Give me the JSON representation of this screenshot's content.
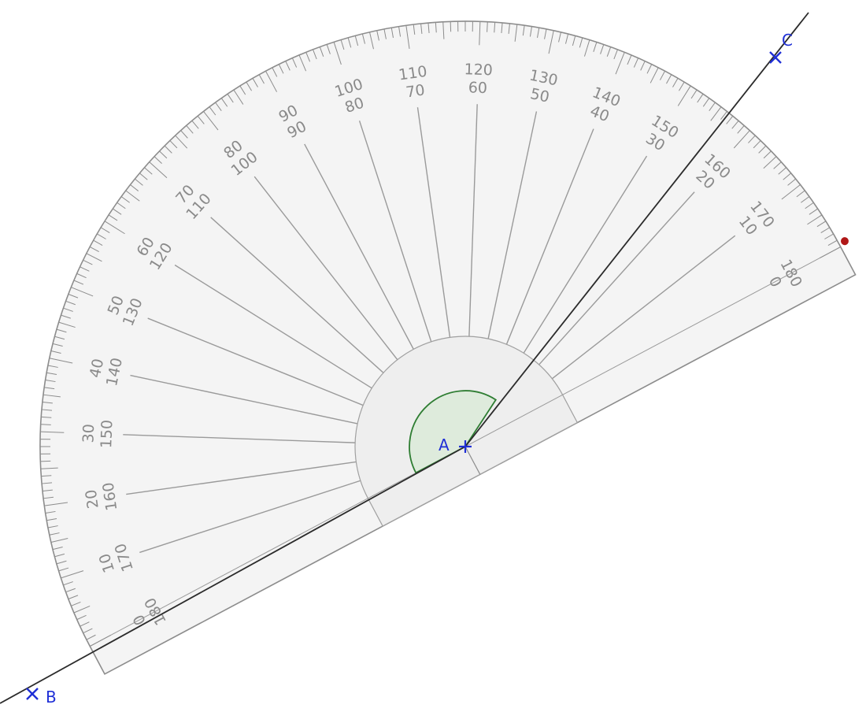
{
  "tool": "protractor",
  "colors": {
    "protractor_stroke": "#8c8c8c",
    "protractor_fill": "#f2f2f2",
    "line": "#2b2b2b",
    "point": "#1f2fd6",
    "angle_fill": "#d8ead6",
    "angle_stroke": "#2e7d32",
    "handle": "#b01818",
    "tick_label": "#8a8a8a"
  },
  "scale": {
    "outer_labels": [
      "0",
      "10",
      "20",
      "30",
      "40",
      "50",
      "60",
      "70",
      "80",
      "90",
      "100",
      "110",
      "120",
      "130",
      "140",
      "150",
      "160",
      "170",
      "180"
    ],
    "inner_labels": [
      "180",
      "170",
      "160",
      "150",
      "140",
      "130",
      "120",
      "110",
      "100",
      "90",
      "80",
      "70",
      "60",
      "50",
      "40",
      "30",
      "20",
      "10",
      "0"
    ]
  },
  "points": [
    {
      "id": "A",
      "label": "A",
      "shape": "plus"
    },
    {
      "id": "B",
      "label": "B",
      "shape": "cross"
    },
    {
      "id": "C",
      "label": "C",
      "shape": "cross"
    }
  ],
  "angle_marker": {
    "vertex": "A",
    "from": "B",
    "to": "C"
  }
}
